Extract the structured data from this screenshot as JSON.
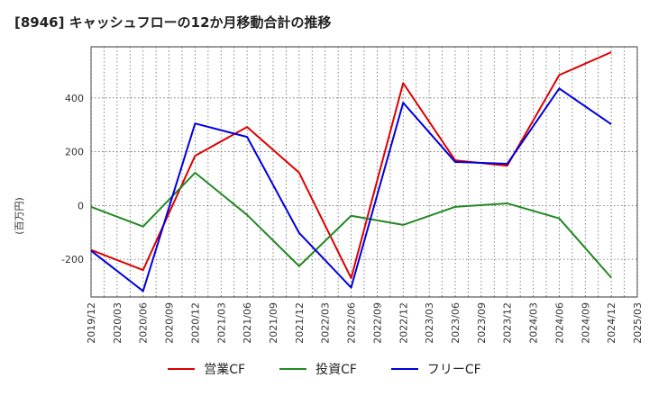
{
  "chart_data": {
    "type": "line",
    "title": "[8946]  キャッシュフローの12か月移動合計の推移",
    "ylabel": "(百万円)",
    "xlabel": "",
    "ylim": [
      -340,
      590
    ],
    "yticks": [
      -200,
      0,
      200,
      400
    ],
    "categories": [
      "2019/12",
      "2020/03",
      "2020/06",
      "2020/09",
      "2020/12",
      "2021/03",
      "2021/06",
      "2021/09",
      "2021/12",
      "2022/03",
      "2022/06",
      "2022/09",
      "2022/12",
      "2023/03",
      "2023/06",
      "2023/09",
      "2023/12",
      "2024/03",
      "2024/06",
      "2024/09",
      "2024/12",
      "2025/03"
    ],
    "series": [
      {
        "name": "営業CF",
        "color": "#dd0000",
        "points": [
          [
            0,
            -165
          ],
          [
            2,
            -240
          ],
          [
            4,
            185
          ],
          [
            6,
            292
          ],
          [
            8,
            122
          ],
          [
            10,
            -270
          ],
          [
            12,
            455
          ],
          [
            14,
            168
          ],
          [
            16,
            148
          ],
          [
            18,
            485
          ],
          [
            20,
            570
          ]
        ]
      },
      {
        "name": "投資CF",
        "color": "#228822",
        "points": [
          [
            0,
            -5
          ],
          [
            2,
            -78
          ],
          [
            4,
            122
          ],
          [
            6,
            -35
          ],
          [
            8,
            -225
          ],
          [
            10,
            -38
          ],
          [
            12,
            -72
          ],
          [
            14,
            -5
          ],
          [
            16,
            8
          ],
          [
            18,
            -48
          ],
          [
            20,
            -268
          ]
        ]
      },
      {
        "name": "フリーCF",
        "color": "#0000dd",
        "points": [
          [
            0,
            -168
          ],
          [
            2,
            -318
          ],
          [
            4,
            305
          ],
          [
            6,
            255
          ],
          [
            8,
            -102
          ],
          [
            10,
            -305
          ],
          [
            12,
            382
          ],
          [
            14,
            162
          ],
          [
            16,
            155
          ],
          [
            18,
            435
          ],
          [
            20,
            302
          ]
        ]
      }
    ],
    "legend": [
      "営業CF",
      "投資CF",
      "フリーCF"
    ],
    "legend_position": "bottom",
    "grid": true
  }
}
